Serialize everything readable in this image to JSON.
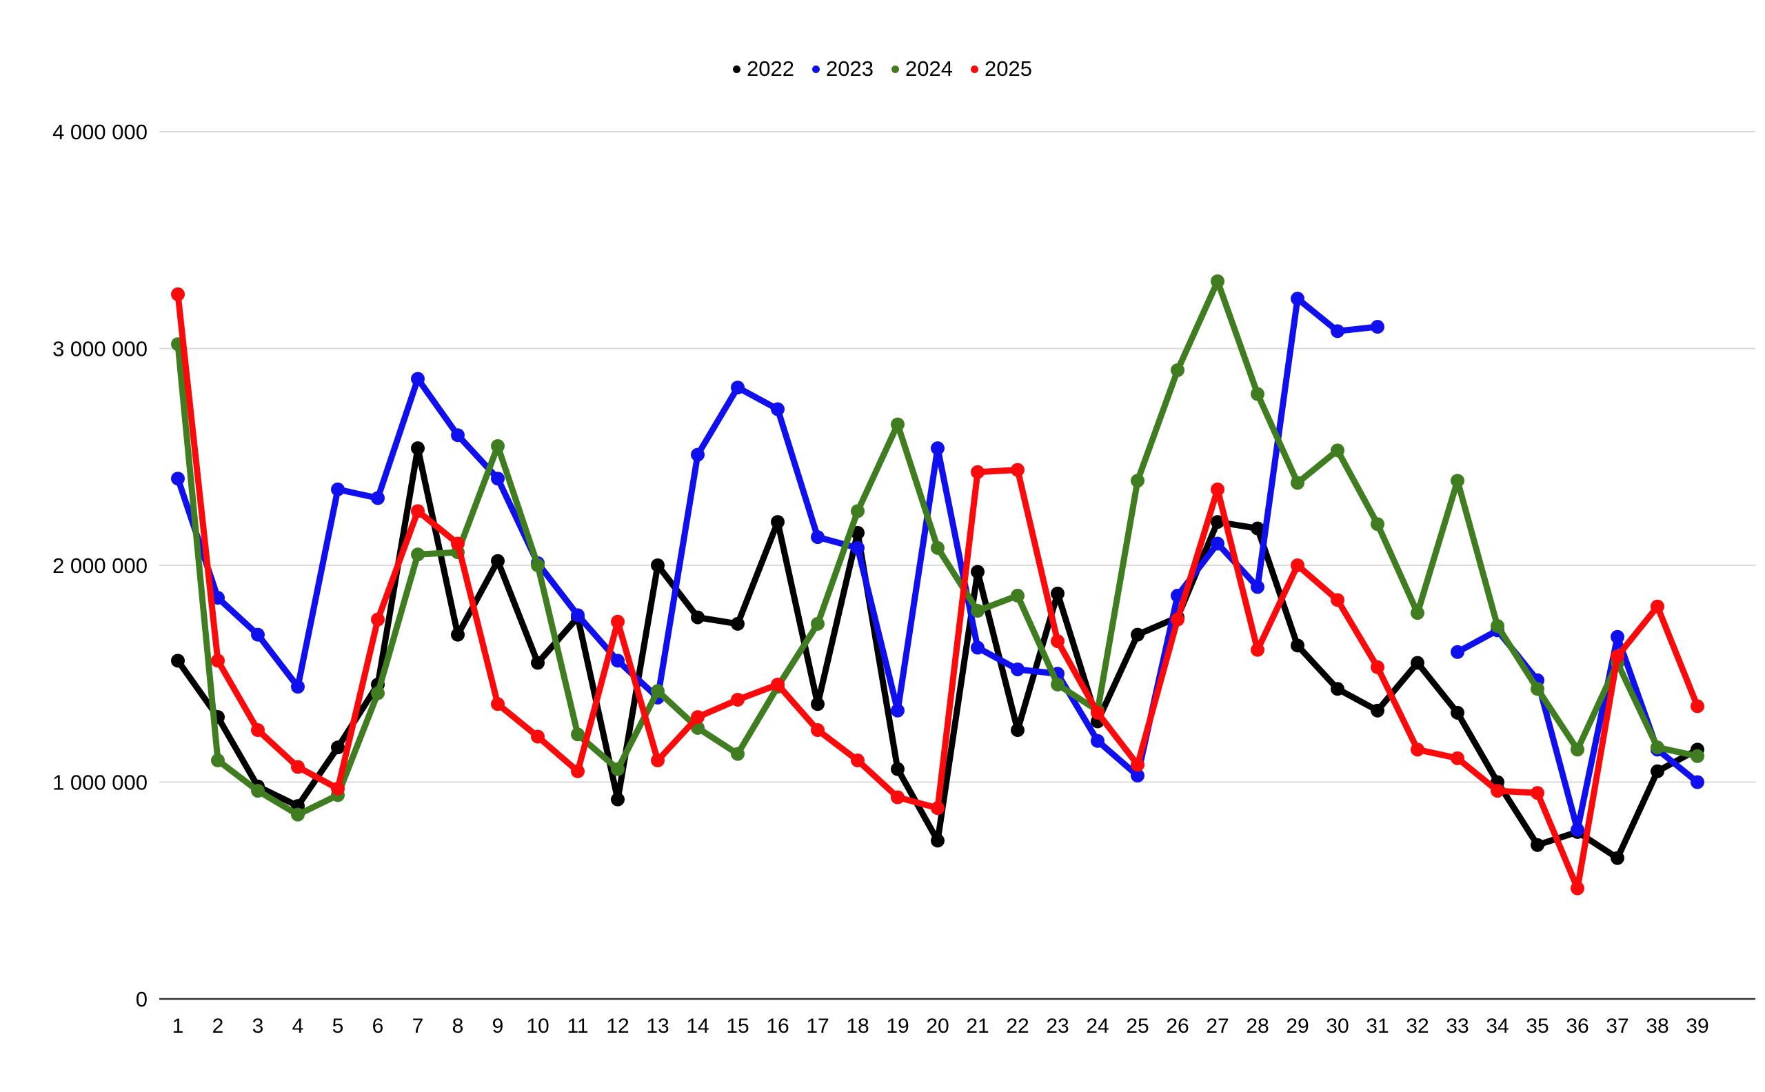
{
  "chart_data": {
    "type": "line",
    "title": "",
    "xlabel": "",
    "ylabel": "",
    "x": [
      1,
      2,
      3,
      4,
      5,
      6,
      7,
      8,
      9,
      10,
      11,
      12,
      13,
      14,
      15,
      16,
      17,
      18,
      19,
      20,
      21,
      22,
      23,
      24,
      25,
      26,
      27,
      28,
      29,
      30,
      31,
      32,
      33,
      34,
      35,
      36,
      37,
      38,
      39
    ],
    "ylim": [
      0,
      4000000
    ],
    "grid": true,
    "legend_position": "top-center",
    "gridline_color": "#d9d9d9",
    "axis_line_color": "#333333",
    "y_ticks": [
      {
        "value": 0,
        "label": "0"
      },
      {
        "value": 1000000,
        "label": "1 000 000"
      },
      {
        "value": 2000000,
        "label": "2 000 000"
      },
      {
        "value": 3000000,
        "label": "3 000 000"
      },
      {
        "value": 4000000,
        "label": "4 000 000"
      }
    ],
    "series": [
      {
        "name": "2022",
        "color": "#000000",
        "values": [
          1560000,
          1300000,
          980000,
          890000,
          1160000,
          1450000,
          2540000,
          1680000,
          2020000,
          1550000,
          1760000,
          920000,
          2000000,
          1760000,
          1730000,
          2200000,
          1360000,
          2150000,
          1060000,
          730000,
          1970000,
          1240000,
          1870000,
          1280000,
          1680000,
          1760000,
          2200000,
          2170000,
          1630000,
          1430000,
          1330000,
          1550000,
          1320000,
          1000000,
          710000,
          770000,
          650000,
          1050000,
          1150000
        ]
      },
      {
        "name": "2023",
        "color": "#1010ee",
        "values": [
          2400000,
          1850000,
          1680000,
          1440000,
          2350000,
          2310000,
          2860000,
          2600000,
          2400000,
          2010000,
          1770000,
          1560000,
          1390000,
          2510000,
          2820000,
          2720000,
          2130000,
          2080000,
          1330000,
          2540000,
          1620000,
          1520000,
          1500000,
          1190000,
          1030000,
          1860000,
          2100000,
          1900000,
          3230000,
          3080000,
          3100000,
          null,
          1600000,
          1700000,
          1470000,
          780000,
          1670000,
          1150000,
          1000000
        ]
      },
      {
        "name": "2024",
        "color": "#3f7d20",
        "values": [
          3020000,
          1100000,
          960000,
          850000,
          940000,
          1410000,
          2050000,
          2060000,
          2550000,
          2000000,
          1220000,
          1060000,
          1420000,
          1250000,
          1130000,
          1440000,
          1730000,
          2250000,
          2650000,
          2080000,
          1790000,
          1860000,
          1450000,
          1330000,
          2390000,
          2900000,
          3310000,
          2790000,
          2380000,
          2530000,
          2190000,
          1780000,
          2390000,
          1720000,
          1430000,
          1150000,
          1550000,
          1160000,
          1120000
        ]
      },
      {
        "name": "2025",
        "color": "#fa0a0a",
        "values": [
          3250000,
          1560000,
          1240000,
          1070000,
          970000,
          1750000,
          2250000,
          2100000,
          1360000,
          1210000,
          1050000,
          1740000,
          1100000,
          1300000,
          1380000,
          1450000,
          1240000,
          1100000,
          930000,
          880000,
          2430000,
          2440000,
          1650000,
          1320000,
          1080000,
          1750000,
          2350000,
          1610000,
          2000000,
          1840000,
          1530000,
          1150000,
          1110000,
          960000,
          950000,
          510000,
          1580000,
          1810000,
          1350000
        ]
      }
    ]
  }
}
